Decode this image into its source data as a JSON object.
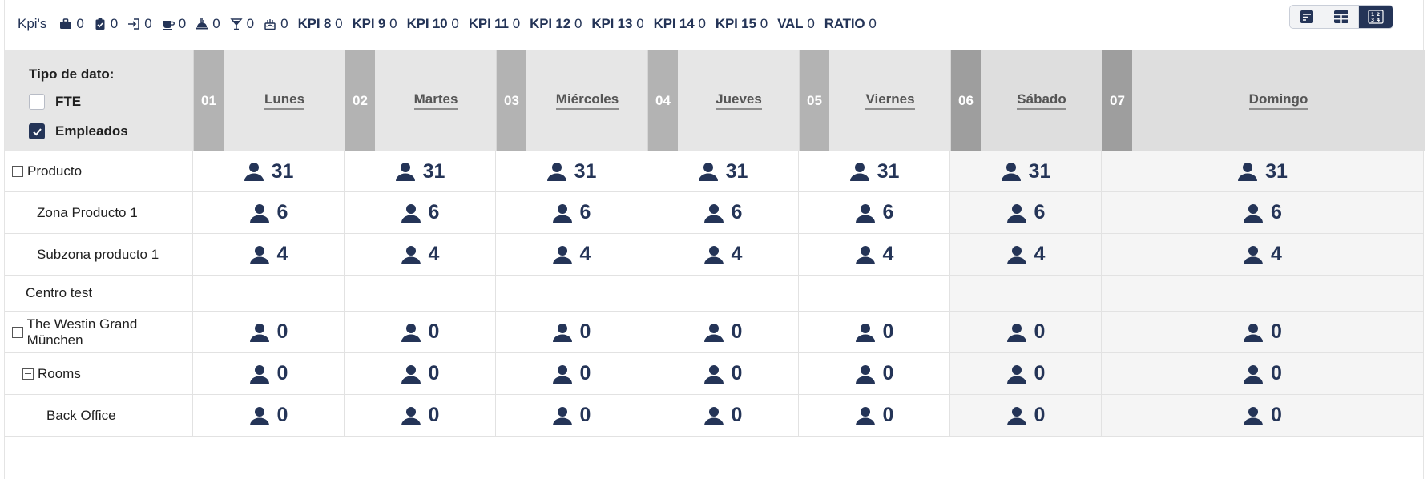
{
  "kpis": {
    "title": "Kpi's",
    "items": [
      {
        "icon": "briefcase-icon",
        "value": "0"
      },
      {
        "icon": "clipboard-check-icon",
        "value": "0"
      },
      {
        "icon": "sign-in-icon",
        "value": "0"
      },
      {
        "icon": "coffee-icon",
        "value": "0"
      },
      {
        "icon": "hotel-service-icon",
        "value": "0"
      },
      {
        "icon": "cocktail-icon",
        "value": "0"
      },
      {
        "icon": "birthday-cake-icon",
        "value": "0"
      },
      {
        "name": "KPI 8",
        "value": "0"
      },
      {
        "name": "KPI 9",
        "value": "0"
      },
      {
        "name": "KPI 10",
        "value": "0"
      },
      {
        "name": "KPI 11",
        "value": "0"
      },
      {
        "name": "KPI 12",
        "value": "0"
      },
      {
        "name": "KPI 13",
        "value": "0"
      },
      {
        "name": "KPI 14",
        "value": "0"
      },
      {
        "name": "KPI 15",
        "value": "0"
      },
      {
        "name": "VAL",
        "value": "0"
      },
      {
        "name": "RATIO",
        "value": "0"
      }
    ]
  },
  "view_toggle": {
    "buttons": [
      {
        "icon": "list-sort-icon",
        "active": false
      },
      {
        "icon": "table-icon",
        "active": false
      },
      {
        "icon": "numbers-icon",
        "active": true
      }
    ]
  },
  "data_type": {
    "title": "Tipo de dato:",
    "options": [
      {
        "label": "FTE",
        "checked": false
      },
      {
        "label": "Empleados",
        "checked": true
      }
    ]
  },
  "days": [
    {
      "num": "01",
      "name": "Lunes",
      "weekend": false
    },
    {
      "num": "02",
      "name": "Martes",
      "weekend": false
    },
    {
      "num": "03",
      "name": "Miércoles",
      "weekend": false
    },
    {
      "num": "04",
      "name": "Jueves",
      "weekend": false
    },
    {
      "num": "05",
      "name": "Viernes",
      "weekend": false
    },
    {
      "num": "06",
      "name": "Sábado",
      "weekend": true
    },
    {
      "num": "07",
      "name": "Domingo",
      "weekend": true
    }
  ],
  "rows": [
    {
      "label": "Producto",
      "collapsible": true,
      "level": 0,
      "values": [
        "31",
        "31",
        "31",
        "31",
        "31",
        "31",
        "31"
      ]
    },
    {
      "label": "Zona Producto 1",
      "collapsible": false,
      "level": 1,
      "values": [
        "6",
        "6",
        "6",
        "6",
        "6",
        "6",
        "6"
      ]
    },
    {
      "label": "Subzona producto 1",
      "collapsible": false,
      "level": 1,
      "values": [
        "4",
        "4",
        "4",
        "4",
        "4",
        "4",
        "4"
      ]
    },
    {
      "label": "Centro test",
      "collapsible": false,
      "level": 0,
      "values": []
    },
    {
      "label": "The Westin Grand München",
      "collapsible": true,
      "level": 0,
      "values": [
        "0",
        "0",
        "0",
        "0",
        "0",
        "0",
        "0"
      ]
    },
    {
      "label": "Rooms",
      "collapsible": true,
      "level": 1,
      "values": [
        "0",
        "0",
        "0",
        "0",
        "0",
        "0",
        "0"
      ]
    },
    {
      "label": "Back Office",
      "collapsible": false,
      "level": 2,
      "values": [
        "0",
        "0",
        "0",
        "0",
        "0",
        "0",
        "0"
      ]
    }
  ],
  "colors": {
    "navy": "#243457",
    "header_bg": "#e6e6e6",
    "day_num_bg": "#b3b3b3",
    "weekend_num_bg": "#9e9e9e",
    "weekend_cell_bg": "#f5f5f5"
  }
}
